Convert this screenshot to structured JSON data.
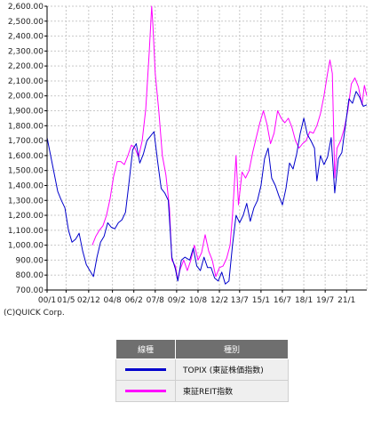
{
  "chart_data": {
    "type": "line",
    "ylim": [
      700,
      2600
    ],
    "y_ticks": [
      "700.00",
      "800.00",
      "900.00",
      "1,000.00",
      "1,100.00",
      "1,200.00",
      "1,300.00",
      "1,400.00",
      "1,500.00",
      "1,600.00",
      "1,700.00",
      "1,800.00",
      "1,900.00",
      "2,000.00",
      "2,100.00",
      "2,200.00",
      "2,300.00",
      "2,400.00",
      "2,500.00",
      "2,600.00"
    ],
    "y_tick_values": [
      700,
      800,
      900,
      1000,
      1100,
      1200,
      1300,
      1400,
      1500,
      1600,
      1700,
      1800,
      1900,
      2000,
      2100,
      2200,
      2300,
      2400,
      2500,
      2600
    ],
    "x_range": [
      "2000-01",
      "2022-06"
    ],
    "x_ticks": [
      {
        "label": "00/1",
        "date": "2000-01"
      },
      {
        "label": "01/5",
        "date": "2001-05"
      },
      {
        "label": "02/12",
        "date": "2002-12"
      },
      {
        "label": "04/8",
        "date": "2004-08"
      },
      {
        "label": "06/2",
        "date": "2006-02"
      },
      {
        "label": "07/8",
        "date": "2007-08"
      },
      {
        "label": "09/2",
        "date": "2009-02"
      },
      {
        "label": "10/8",
        "date": "2010-08"
      },
      {
        "label": "12/2",
        "date": "2012-02"
      },
      {
        "label": "13/7",
        "date": "2013-07"
      },
      {
        "label": "15/1",
        "date": "2015-01"
      },
      {
        "label": "16/7",
        "date": "2016-07"
      },
      {
        "label": "18/1",
        "date": "2018-01"
      },
      {
        "label": "19/7",
        "date": "2019-07"
      },
      {
        "label": "21/1",
        "date": "2021-01"
      }
    ],
    "grid": true,
    "series": [
      {
        "name": "TOPIX (東証株価指数)",
        "color": "#0000cc",
        "points": [
          [
            "2000-01",
            1720
          ],
          [
            "2000-04",
            1600
          ],
          [
            "2000-07",
            1480
          ],
          [
            "2000-10",
            1360
          ],
          [
            "2001-01",
            1300
          ],
          [
            "2001-04",
            1250
          ],
          [
            "2001-07",
            1100
          ],
          [
            "2001-10",
            1020
          ],
          [
            "2002-01",
            1040
          ],
          [
            "2002-04",
            1080
          ],
          [
            "2002-07",
            960
          ],
          [
            "2002-10",
            870
          ],
          [
            "2003-01",
            830
          ],
          [
            "2003-04",
            790
          ],
          [
            "2003-07",
            920
          ],
          [
            "2003-10",
            1020
          ],
          [
            "2004-01",
            1060
          ],
          [
            "2004-04",
            1150
          ],
          [
            "2004-07",
            1120
          ],
          [
            "2004-10",
            1110
          ],
          [
            "2005-01",
            1150
          ],
          [
            "2005-04",
            1170
          ],
          [
            "2005-07",
            1220
          ],
          [
            "2005-10",
            1420
          ],
          [
            "2006-01",
            1640
          ],
          [
            "2006-04",
            1680
          ],
          [
            "2006-07",
            1550
          ],
          [
            "2006-10",
            1610
          ],
          [
            "2007-01",
            1700
          ],
          [
            "2007-04",
            1730
          ],
          [
            "2007-07",
            1760
          ],
          [
            "2007-10",
            1560
          ],
          [
            "2008-01",
            1380
          ],
          [
            "2008-04",
            1350
          ],
          [
            "2008-07",
            1300
          ],
          [
            "2008-10",
            920
          ],
          [
            "2009-01",
            840
          ],
          [
            "2009-03",
            760
          ],
          [
            "2009-06",
            900
          ],
          [
            "2009-09",
            920
          ],
          [
            "2010-01",
            900
          ],
          [
            "2010-04",
            980
          ],
          [
            "2010-07",
            860
          ],
          [
            "2010-10",
            830
          ],
          [
            "2011-01",
            920
          ],
          [
            "2011-04",
            850
          ],
          [
            "2011-07",
            850
          ],
          [
            "2011-10",
            780
          ],
          [
            "2012-01",
            760
          ],
          [
            "2012-04",
            820
          ],
          [
            "2012-07",
            740
          ],
          [
            "2012-10",
            760
          ],
          [
            "2013-01",
            1000
          ],
          [
            "2013-04",
            1200
          ],
          [
            "2013-07",
            1150
          ],
          [
            "2013-10",
            1200
          ],
          [
            "2014-01",
            1280
          ],
          [
            "2014-04",
            1160
          ],
          [
            "2014-07",
            1250
          ],
          [
            "2014-10",
            1300
          ],
          [
            "2015-01",
            1400
          ],
          [
            "2015-04",
            1580
          ],
          [
            "2015-07",
            1650
          ],
          [
            "2015-10",
            1450
          ],
          [
            "2016-01",
            1400
          ],
          [
            "2016-04",
            1330
          ],
          [
            "2016-07",
            1270
          ],
          [
            "2016-10",
            1380
          ],
          [
            "2017-01",
            1550
          ],
          [
            "2017-04",
            1510
          ],
          [
            "2017-07",
            1610
          ],
          [
            "2017-10",
            1750
          ],
          [
            "2018-01",
            1850
          ],
          [
            "2018-04",
            1740
          ],
          [
            "2018-07",
            1700
          ],
          [
            "2018-10",
            1650
          ],
          [
            "2018-12",
            1430
          ],
          [
            "2019-03",
            1600
          ],
          [
            "2019-06",
            1540
          ],
          [
            "2019-09",
            1590
          ],
          [
            "2019-12",
            1720
          ],
          [
            "2020-03",
            1350
          ],
          [
            "2020-06",
            1580
          ],
          [
            "2020-09",
            1620
          ],
          [
            "2020-12",
            1800
          ],
          [
            "2021-03",
            1980
          ],
          [
            "2021-06",
            1950
          ],
          [
            "2021-09",
            2030
          ],
          [
            "2021-12",
            1990
          ],
          [
            "2022-03",
            1930
          ],
          [
            "2022-06",
            1940
          ]
        ]
      },
      {
        "name": "東証REIT指数",
        "color": "#ff00ff",
        "points": [
          [
            "2003-03",
            1000
          ],
          [
            "2003-06",
            1060
          ],
          [
            "2003-09",
            1100
          ],
          [
            "2003-12",
            1130
          ],
          [
            "2004-03",
            1200
          ],
          [
            "2004-06",
            1310
          ],
          [
            "2004-09",
            1460
          ],
          [
            "2004-12",
            1560
          ],
          [
            "2005-03",
            1560
          ],
          [
            "2005-06",
            1540
          ],
          [
            "2005-09",
            1600
          ],
          [
            "2005-12",
            1670
          ],
          [
            "2006-03",
            1650
          ],
          [
            "2006-06",
            1590
          ],
          [
            "2006-09",
            1700
          ],
          [
            "2006-12",
            1910
          ],
          [
            "2007-03",
            2300
          ],
          [
            "2007-05",
            2600
          ],
          [
            "2007-06",
            2480
          ],
          [
            "2007-08",
            2150
          ],
          [
            "2007-11",
            1900
          ],
          [
            "2008-02",
            1600
          ],
          [
            "2008-05",
            1470
          ],
          [
            "2008-08",
            1250
          ],
          [
            "2008-10",
            900
          ],
          [
            "2009-01",
            860
          ],
          [
            "2009-03",
            770
          ],
          [
            "2009-05",
            840
          ],
          [
            "2009-08",
            900
          ],
          [
            "2009-11",
            830
          ],
          [
            "2010-02",
            900
          ],
          [
            "2010-05",
            1000
          ],
          [
            "2010-08",
            900
          ],
          [
            "2010-11",
            950
          ],
          [
            "2011-02",
            1070
          ],
          [
            "2011-05",
            960
          ],
          [
            "2011-08",
            900
          ],
          [
            "2011-11",
            790
          ],
          [
            "2012-02",
            850
          ],
          [
            "2012-05",
            860
          ],
          [
            "2012-08",
            910
          ],
          [
            "2012-11",
            1000
          ],
          [
            "2013-01",
            1200
          ],
          [
            "2013-04",
            1600
          ],
          [
            "2013-06",
            1270
          ],
          [
            "2013-09",
            1490
          ],
          [
            "2013-12",
            1450
          ],
          [
            "2014-03",
            1500
          ],
          [
            "2014-06",
            1620
          ],
          [
            "2014-09",
            1720
          ],
          [
            "2014-12",
            1820
          ],
          [
            "2015-03",
            1900
          ],
          [
            "2015-06",
            1810
          ],
          [
            "2015-09",
            1680
          ],
          [
            "2015-12",
            1750
          ],
          [
            "2016-03",
            1900
          ],
          [
            "2016-06",
            1850
          ],
          [
            "2016-09",
            1820
          ],
          [
            "2016-12",
            1850
          ],
          [
            "2017-03",
            1790
          ],
          [
            "2017-06",
            1700
          ],
          [
            "2017-09",
            1650
          ],
          [
            "2017-12",
            1680
          ],
          [
            "2018-03",
            1700
          ],
          [
            "2018-06",
            1760
          ],
          [
            "2018-09",
            1750
          ],
          [
            "2018-12",
            1800
          ],
          [
            "2019-03",
            1880
          ],
          [
            "2019-06",
            2000
          ],
          [
            "2019-09",
            2150
          ],
          [
            "2019-11",
            2240
          ],
          [
            "2020-01",
            2150
          ],
          [
            "2020-03",
            1450
          ],
          [
            "2020-05",
            1650
          ],
          [
            "2020-08",
            1700
          ],
          [
            "2020-11",
            1780
          ],
          [
            "2021-02",
            1900
          ],
          [
            "2021-05",
            2080
          ],
          [
            "2021-08",
            2120
          ],
          [
            "2021-11",
            2060
          ],
          [
            "2022-02",
            1940
          ],
          [
            "2022-04",
            2070
          ],
          [
            "2022-06",
            2000
          ]
        ]
      }
    ]
  },
  "copyright": "(C)QUICK Corp.",
  "legend": {
    "header_line": "線種",
    "header_type": "種別",
    "rows": [
      {
        "name": "TOPIX (東証株価指数)",
        "color": "#0000cc"
      },
      {
        "name": "東証REIT指数",
        "color": "#ff00ff"
      }
    ]
  }
}
